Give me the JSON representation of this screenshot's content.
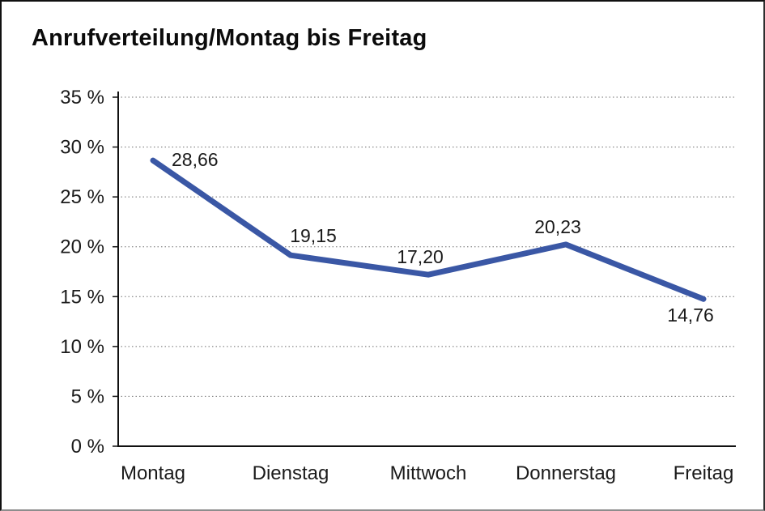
{
  "chart_data": {
    "type": "line",
    "title": "Anrufverteilung/Montag bis Freitag",
    "categories": [
      "Montag",
      "Dienstag",
      "Mittwoch",
      "Donnerstag",
      "Freitag"
    ],
    "values": [
      28.66,
      19.15,
      17.2,
      20.23,
      14.76
    ],
    "value_labels": [
      "28,66",
      "19,15",
      "17,20",
      "20,23",
      "14,76"
    ],
    "label_positions": [
      "right",
      "above-right",
      "above",
      "above",
      "below"
    ],
    "series_name": "Anrufverteilung",
    "y_ticks": [
      "0 %",
      "5 %",
      "10 %",
      "15 %",
      "20 %",
      "25 %",
      "30 %",
      "35 %"
    ],
    "ylim": [
      0,
      35
    ],
    "y_step": 5,
    "xlabel": "",
    "ylabel": "",
    "grid": "horizontal-dotted",
    "legend": "none",
    "line_color": "#3A57A5",
    "axis_color": "#111111",
    "grid_color": "#6e6e6e",
    "text_color": "#1a1a1a"
  }
}
